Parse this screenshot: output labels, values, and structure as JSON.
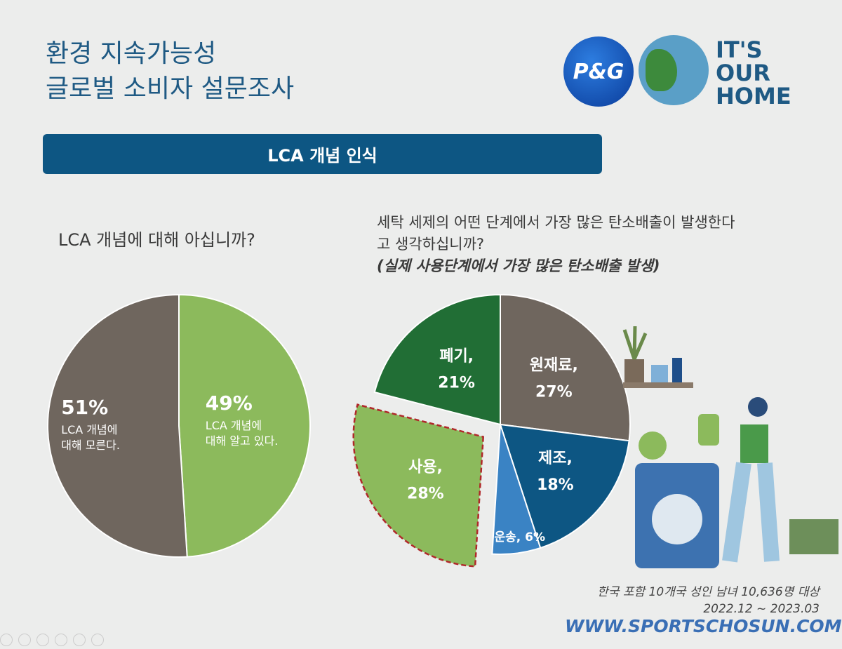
{
  "header": {
    "title_line1": "환경 지속가능성",
    "title_line2": "글로벌 소비자 설문조사",
    "pg_logo": "P&G",
    "campaign_logo": "IT'S OUR HOME"
  },
  "banner": "LCA 개념 인식",
  "colors": {
    "title": "#1f5a84",
    "banner": "#0d5683",
    "gray": "#6f665e",
    "light_green": "#8cba5c",
    "dark_green": "#216e35",
    "dark_blue": "#0d5683",
    "light_blue": "#3a83c4",
    "highlight_border": "#b0282a"
  },
  "chart_data": [
    {
      "type": "pie",
      "title": "LCA 개념에 대해 아십니까?",
      "slices": [
        {
          "value": 49,
          "pct_label": "49%",
          "label": "LCA 개념에 대해 알고 있다.",
          "color": "#8cba5c"
        },
        {
          "value": 51,
          "pct_label": "51%",
          "label": "LCA 개념에 대해 모른다.",
          "color": "#6f665e"
        }
      ]
    },
    {
      "type": "pie",
      "title": "세탁 세제의 어떤 단계에서 가장 많은 탄소배출이 발생한다고 생각하십니까?",
      "subtitle": "(실제 사용단계에서 가장 많은 탄소배출 발생)",
      "slices": [
        {
          "name": "원재료,",
          "pct_label": "27%",
          "value": 27,
          "color": "#6f665e"
        },
        {
          "name": "제조,",
          "pct_label": "18%",
          "value": 18,
          "color": "#0d5683"
        },
        {
          "name": "운송, 6%",
          "pct_label": "",
          "value": 6,
          "color": "#3a83c4"
        },
        {
          "name": "사용,",
          "pct_label": "28%",
          "value": 28,
          "color": "#8cba5c",
          "exploded": true
        },
        {
          "name": "폐기,",
          "pct_label": "21%",
          "value": 21,
          "color": "#216e35"
        }
      ]
    }
  ],
  "footnote": {
    "line1": "한국 포함 10개국 성인 남녀 10,636명 대상",
    "line2": "2022.12 ~ 2023.03"
  },
  "watermark": "WWW.SPORTSCHOSUN.COM"
}
